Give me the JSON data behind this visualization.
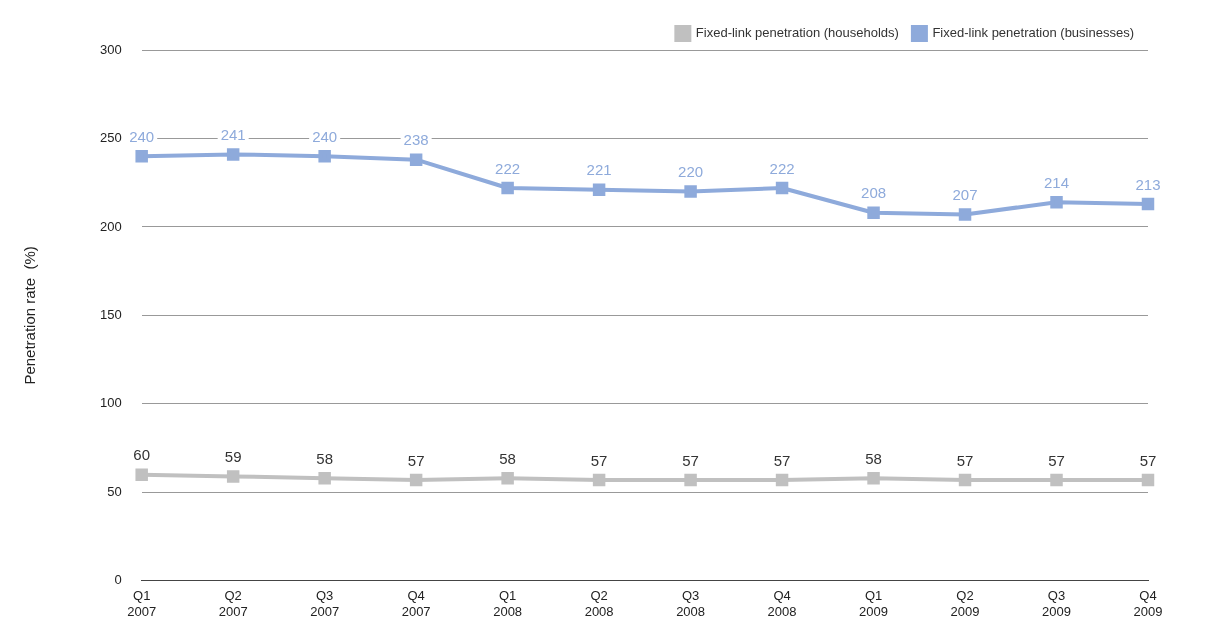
{
  "chart_data": {
    "type": "line",
    "ylabel": "Penetration rate  (%)",
    "categories": [
      "Q1 2007",
      "Q2 2007",
      "Q3 2007",
      "Q4 2007",
      "Q1 2008",
      "Q2 2008",
      "Q3 2008",
      "Q4 2008",
      "Q1 2009",
      "Q2 2009",
      "Q3 2009",
      "Q4 2009"
    ],
    "series": [
      {
        "name": "Fixed-link penetration (households)",
        "color": "#c0c0c0",
        "values": [
          60,
          59,
          58,
          57,
          58,
          57,
          57,
          57,
          58,
          57,
          57,
          57
        ]
      },
      {
        "name": "Fixed-link penetration (businesses)",
        "color": "#8eaadb",
        "values": [
          240,
          241,
          240,
          238,
          222,
          221,
          220,
          222,
          208,
          207,
          214,
          213
        ]
      }
    ],
    "ylim": [
      0,
      300
    ],
    "yticks": [
      0,
      50,
      100,
      150,
      200,
      250,
      300
    ],
    "grid": "y",
    "legend": "top right",
    "marker": "square",
    "line_style": "solid",
    "data_labels": true
  }
}
